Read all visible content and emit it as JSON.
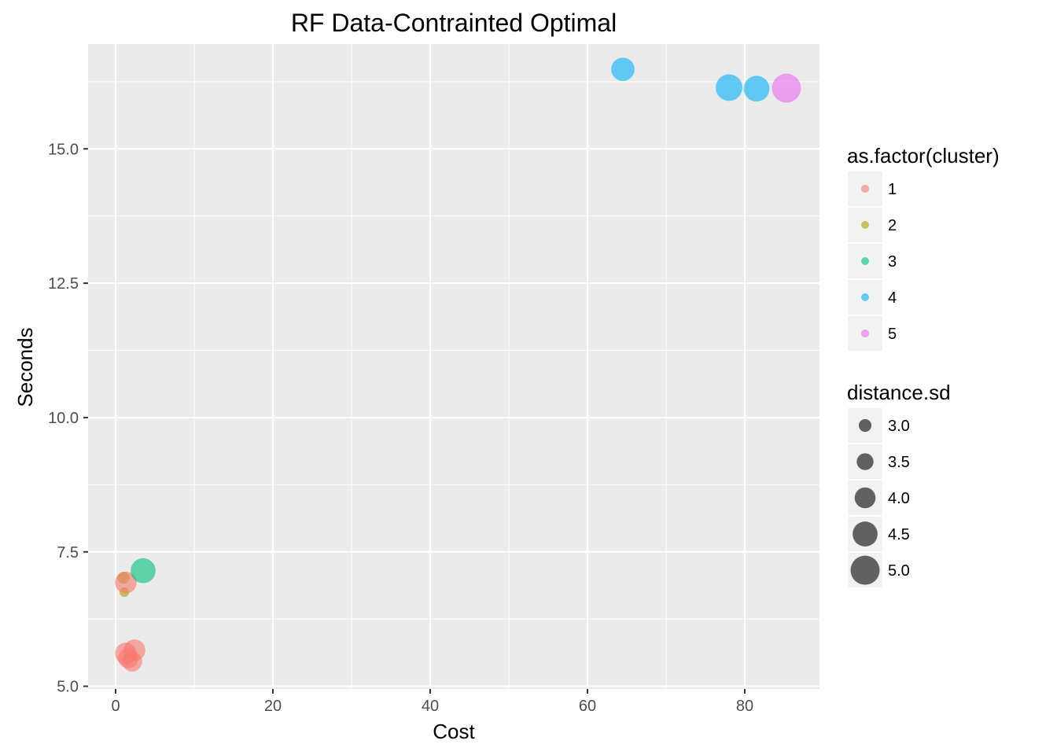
{
  "chart_data": {
    "type": "scatter",
    "title": "RF Data-Contrainted Optimal",
    "xlabel": "Cost",
    "ylabel": "Seconds",
    "xlim": [
      -3.5,
      89.5
    ],
    "ylim": [
      4.95,
      16.95
    ],
    "x_ticks": [
      0,
      20,
      40,
      60,
      80
    ],
    "x_tick_labels": [
      "0",
      "20",
      "40",
      "60",
      "80"
    ],
    "y_ticks": [
      5.0,
      7.5,
      10.0,
      12.5,
      15.0
    ],
    "y_tick_labels": [
      "5.0",
      "7.5",
      "10.0",
      "12.5",
      "15.0"
    ],
    "grid": true,
    "point_alpha": 0.6,
    "points": [
      {
        "x": 1.0,
        "y": 7.02,
        "cluster": "2",
        "size": 2.9
      },
      {
        "x": 1.1,
        "y": 6.75,
        "cluster": "2",
        "size": 2.6
      },
      {
        "x": 1.3,
        "y": 6.93,
        "cluster": "1",
        "size": 4.1
      },
      {
        "x": 3.5,
        "y": 7.15,
        "cluster": "3",
        "size": 4.5
      },
      {
        "x": 1.3,
        "y": 5.61,
        "cluster": "1",
        "size": 4.1
      },
      {
        "x": 2.4,
        "y": 5.67,
        "cluster": "1",
        "size": 4.1
      },
      {
        "x": 1.6,
        "y": 5.52,
        "cluster": "1",
        "size": 3.9
      },
      {
        "x": 2.1,
        "y": 5.46,
        "cluster": "1",
        "size": 3.9
      },
      {
        "x": 64.5,
        "y": 16.48,
        "cluster": "4",
        "size": 4.3
      },
      {
        "x": 78.0,
        "y": 16.14,
        "cluster": "4",
        "size": 4.7
      },
      {
        "x": 81.5,
        "y": 16.12,
        "cluster": "4",
        "size": 4.6
      },
      {
        "x": 85.3,
        "y": 16.13,
        "cluster": "5",
        "size": 5.0
      }
    ],
    "legends": {
      "color": {
        "title": "as.factor(cluster)",
        "items": [
          {
            "label": "1",
            "color": "#F8766D"
          },
          {
            "label": "2",
            "color": "#A3A500"
          },
          {
            "label": "3",
            "color": "#00BF7D"
          },
          {
            "label": "4",
            "color": "#00B0F6"
          },
          {
            "label": "5",
            "color": "#E76BF3"
          }
        ]
      },
      "size": {
        "title": "distance.sd",
        "items": [
          {
            "label": "3.0",
            "value": 3.0
          },
          {
            "label": "3.5",
            "value": 3.5
          },
          {
            "label": "4.0",
            "value": 4.0
          },
          {
            "label": "4.5",
            "value": 4.5
          },
          {
            "label": "5.0",
            "value": 5.0
          }
        ]
      },
      "placement": "right"
    },
    "colors": {
      "panel_background": "#EBEBEB",
      "grid_major": "#FFFFFF",
      "legend_key_background": "#F2F2F2",
      "size_legend_point": "#000000"
    }
  }
}
